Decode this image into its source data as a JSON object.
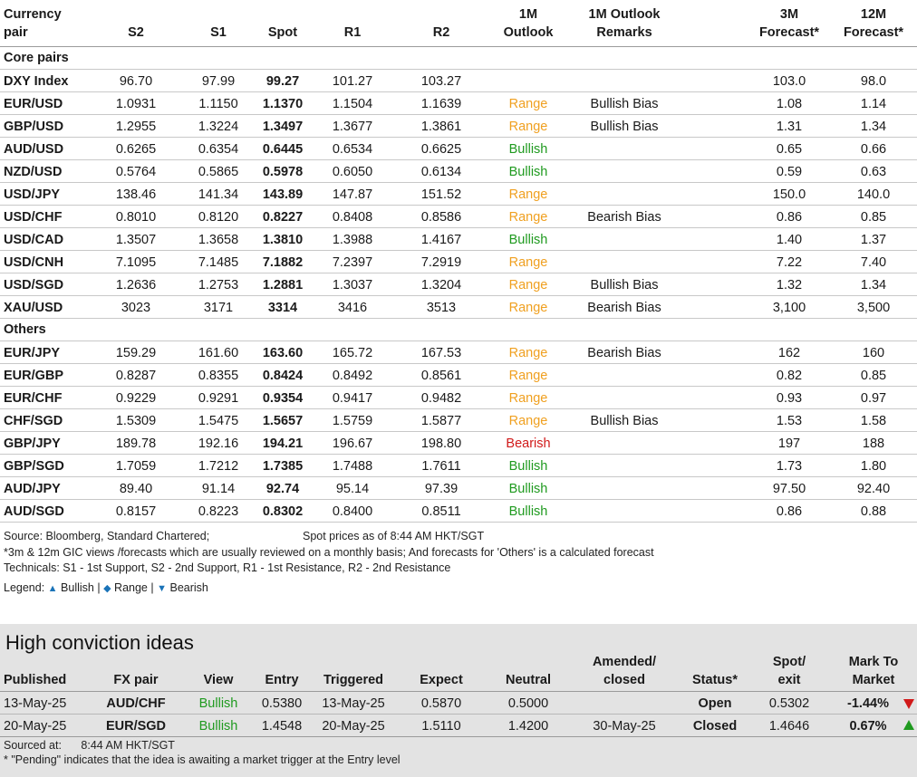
{
  "headers": {
    "pair": [
      "Currency",
      "pair"
    ],
    "s2": "S2",
    "s1": "S1",
    "spot": "Spot",
    "r1": "R1",
    "r2": "R2",
    "outlook": [
      "1M",
      "Outlook"
    ],
    "remarks": [
      "1M Outlook",
      "Remarks"
    ],
    "f3m": [
      "3M",
      "Forecast*"
    ],
    "f12m": [
      "12M",
      "Forecast*"
    ]
  },
  "sections": [
    {
      "title": "Core pairs",
      "rows": [
        {
          "pair": "DXY Index",
          "s2": "96.70",
          "s1": "97.99",
          "spot": "99.27",
          "r1": "101.27",
          "r2": "103.27",
          "outlook": "",
          "remarks": "",
          "f3m": "103.0",
          "f12m": "98.0"
        },
        {
          "pair": "EUR/USD",
          "s2": "1.0931",
          "s1": "1.1150",
          "spot": "1.1370",
          "r1": "1.1504",
          "r2": "1.1639",
          "outlook": "Range",
          "remarks": "Bullish Bias",
          "f3m": "1.08",
          "f12m": "1.14"
        },
        {
          "pair": "GBP/USD",
          "s2": "1.2955",
          "s1": "1.3224",
          "spot": "1.3497",
          "r1": "1.3677",
          "r2": "1.3861",
          "outlook": "Range",
          "remarks": "Bullish Bias",
          "f3m": "1.31",
          "f12m": "1.34"
        },
        {
          "pair": "AUD/USD",
          "s2": "0.6265",
          "s1": "0.6354",
          "spot": "0.6445",
          "r1": "0.6534",
          "r2": "0.6625",
          "outlook": "Bullish",
          "remarks": "",
          "f3m": "0.65",
          "f12m": "0.66"
        },
        {
          "pair": "NZD/USD",
          "s2": "0.5764",
          "s1": "0.5865",
          "spot": "0.5978",
          "r1": "0.6050",
          "r2": "0.6134",
          "outlook": "Bullish",
          "remarks": "",
          "f3m": "0.59",
          "f12m": "0.63"
        },
        {
          "pair": "USD/JPY",
          "s2": "138.46",
          "s1": "141.34",
          "spot": "143.89",
          "r1": "147.87",
          "r2": "151.52",
          "outlook": "Range",
          "remarks": "",
          "f3m": "150.0",
          "f12m": "140.0"
        },
        {
          "pair": "USD/CHF",
          "s2": "0.8010",
          "s1": "0.8120",
          "spot": "0.8227",
          "r1": "0.8408",
          "r2": "0.8586",
          "outlook": "Range",
          "remarks": "Bearish Bias",
          "f3m": "0.86",
          "f12m": "0.85"
        },
        {
          "pair": "USD/CAD",
          "s2": "1.3507",
          "s1": "1.3658",
          "spot": "1.3810",
          "r1": "1.3988",
          "r2": "1.4167",
          "outlook": "Bullish",
          "remarks": "",
          "f3m": "1.40",
          "f12m": "1.37"
        },
        {
          "pair": "USD/CNH",
          "s2": "7.1095",
          "s1": "7.1485",
          "spot": "7.1882",
          "r1": "7.2397",
          "r2": "7.2919",
          "outlook": "Range",
          "remarks": "",
          "f3m": "7.22",
          "f12m": "7.40"
        },
        {
          "pair": "USD/SGD",
          "s2": "1.2636",
          "s1": "1.2753",
          "spot": "1.2881",
          "r1": "1.3037",
          "r2": "1.3204",
          "outlook": "Range",
          "remarks": "Bullish Bias",
          "f3m": "1.32",
          "f12m": "1.34"
        },
        {
          "pair": "XAU/USD",
          "s2": "3023",
          "s1": "3171",
          "spot": "3314",
          "r1": "3416",
          "r2": "3513",
          "outlook": "Range",
          "remarks": "Bearish Bias",
          "f3m": "3,100",
          "f12m": "3,500"
        }
      ]
    },
    {
      "title": "Others",
      "rows": [
        {
          "pair": "EUR/JPY",
          "s2": "159.29",
          "s1": "161.60",
          "spot": "163.60",
          "r1": "165.72",
          "r2": "167.53",
          "outlook": "Range",
          "remarks": "Bearish Bias",
          "f3m": "162",
          "f12m": "160"
        },
        {
          "pair": "EUR/GBP",
          "s2": "0.8287",
          "s1": "0.8355",
          "spot": "0.8424",
          "r1": "0.8492",
          "r2": "0.8561",
          "outlook": "Range",
          "remarks": "",
          "f3m": "0.82",
          "f12m": "0.85"
        },
        {
          "pair": "EUR/CHF",
          "s2": "0.9229",
          "s1": "0.9291",
          "spot": "0.9354",
          "r1": "0.9417",
          "r2": "0.9482",
          "outlook": "Range",
          "remarks": "",
          "f3m": "0.93",
          "f12m": "0.97"
        },
        {
          "pair": "CHF/SGD",
          "s2": "1.5309",
          "s1": "1.5475",
          "spot": "1.5657",
          "r1": "1.5759",
          "r2": "1.5877",
          "outlook": "Range",
          "remarks": "Bullish Bias",
          "f3m": "1.53",
          "f12m": "1.58"
        },
        {
          "pair": "GBP/JPY",
          "s2": "189.78",
          "s1": "192.16",
          "spot": "194.21",
          "r1": "196.67",
          "r2": "198.80",
          "outlook": "Bearish",
          "remarks": "",
          "f3m": "197",
          "f12m": "188"
        },
        {
          "pair": "GBP/SGD",
          "s2": "1.7059",
          "s1": "1.7212",
          "spot": "1.7385",
          "r1": "1.7488",
          "r2": "1.7611",
          "outlook": "Bullish",
          "remarks": "",
          "f3m": "1.73",
          "f12m": "1.80"
        },
        {
          "pair": "AUD/JPY",
          "s2": "89.40",
          "s1": "91.14",
          "spot": "92.74",
          "r1": "95.14",
          "r2": "97.39",
          "outlook": "Bullish",
          "remarks": "",
          "f3m": "97.50",
          "f12m": "92.40"
        },
        {
          "pair": "AUD/SGD",
          "s2": "0.8157",
          "s1": "0.8223",
          "spot": "0.8302",
          "r1": "0.8400",
          "r2": "0.8511",
          "outlook": "Bullish",
          "remarks": "",
          "f3m": "0.86",
          "f12m": "0.88"
        }
      ]
    }
  ],
  "notes": {
    "source": "Source: Bloomberg, Standard Chartered;",
    "spot_note": "Spot prices as of 8:44 AM HKT/SGT",
    "footnote": "*3m & 12m GIC views /forecasts which are usually reviewed on a monthly basis; And forecasts for 'Others' is a calculated forecast",
    "technicals": "Technicals: S1 - 1st Support, S2 - 2nd Support, R1 - 1st Resistance, R2 - 2nd Resistance",
    "legend_label": "Legend:",
    "legend_bullish": "Bullish",
    "legend_range": "Range",
    "legend_bearish": "Bearish",
    "legend_sep": "|"
  },
  "colors": {
    "range": "#f0a020",
    "bullish": "#1f9a1f",
    "bearish": "#d11a1a",
    "legend_icon": "#1a73b8",
    "box_bg": "#e3e3e3"
  },
  "icons": {
    "legend_bullish": "triangle-up-icon",
    "legend_range": "diamond-icon",
    "legend_bearish": "triangle-down-icon",
    "mtm_negative": "triangle-down-icon",
    "mtm_positive": "triangle-up-icon"
  },
  "hci": {
    "title": "High conviction ideas",
    "headers": {
      "published": "Published",
      "fx_pair": "FX pair",
      "view": "View",
      "entry": "Entry",
      "triggered": "Triggered",
      "expect": "Expect",
      "neutral": "Neutral",
      "amended": [
        "Amended/",
        "closed"
      ],
      "status": "Status*",
      "spot_exit": [
        "Spot/",
        "exit"
      ],
      "mtm": [
        "Mark To",
        "Market"
      ]
    },
    "rows": [
      {
        "published": "13-May-25",
        "fx_pair": "AUD/CHF",
        "view": "Bullish",
        "entry": "0.5380",
        "triggered": "13-May-25",
        "expect": "0.5870",
        "neutral": "0.5000",
        "amended": "",
        "status": "Open",
        "spot_exit": "0.5302",
        "mtm": "-1.44%",
        "direction": "down"
      },
      {
        "published": "20-May-25",
        "fx_pair": "EUR/SGD",
        "view": "Bullish",
        "entry": "1.4548",
        "triggered": "20-May-25",
        "expect": "1.5110",
        "neutral": "1.4200",
        "amended": "30-May-25",
        "status": "Closed",
        "spot_exit": "1.4646",
        "mtm": "0.67%",
        "direction": "up"
      }
    ],
    "sourced_label": "Sourced at:",
    "sourced_time": "8:44 AM HKT/SGT",
    "pending_note": "* \"Pending\" indicates that the idea is awaiting a market trigger at the Entry level"
  }
}
